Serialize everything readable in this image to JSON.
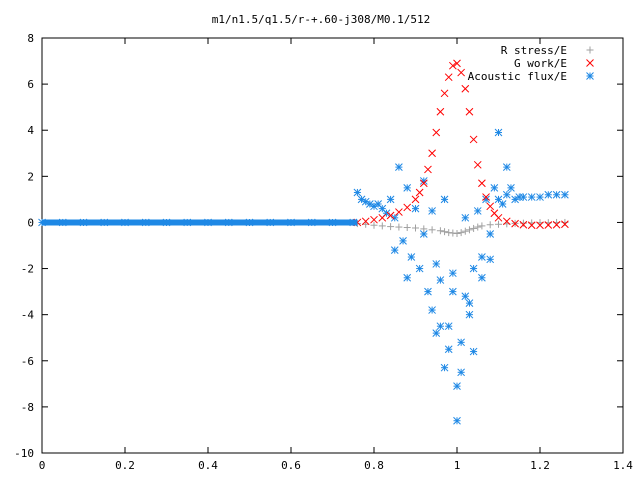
{
  "chart_data": {
    "type": "scatter",
    "title": "m1/n1.5/q1.5/r-+.60-j308/M0.1/512",
    "xlabel": "",
    "ylabel": "",
    "xlim": [
      0,
      1.4
    ],
    "ylim": [
      -10,
      8
    ],
    "x_ticks": [
      "0",
      "0.2",
      "0.4",
      "0.6",
      "0.8",
      "1",
      "1.2",
      "1.4"
    ],
    "y_ticks": [
      "-10",
      "-8",
      "-6",
      "-4",
      "-2",
      "0",
      "2",
      "4",
      "6",
      "8"
    ],
    "grid": false,
    "legend_position": "top-right",
    "series": [
      {
        "name": "R stress/E",
        "marker": "plus",
        "color": "#a0a0a0",
        "x": [
          0.76,
          0.78,
          0.8,
          0.82,
          0.84,
          0.86,
          0.88,
          0.9,
          0.92,
          0.94,
          0.96,
          0.97,
          0.98,
          0.99,
          1.0,
          1.01,
          1.02,
          1.03,
          1.04,
          1.05,
          1.06,
          1.08,
          1.1,
          1.12,
          1.14,
          1.16,
          1.18,
          1.2,
          1.22,
          1.24,
          1.26
        ],
        "y": [
          -0.05,
          -0.08,
          -0.12,
          -0.15,
          -0.18,
          -0.2,
          -0.22,
          -0.24,
          -0.28,
          -0.32,
          -0.36,
          -0.4,
          -0.44,
          -0.46,
          -0.48,
          -0.44,
          -0.38,
          -0.32,
          -0.26,
          -0.2,
          -0.15,
          -0.1,
          -0.08,
          -0.06,
          -0.04,
          -0.03,
          -0.02,
          -0.01,
          -0.01,
          0.0,
          0.0
        ]
      },
      {
        "name": "G work/E",
        "marker": "cross",
        "color": "#ff0000",
        "x": [
          0.76,
          0.78,
          0.8,
          0.82,
          0.84,
          0.86,
          0.88,
          0.9,
          0.91,
          0.92,
          0.93,
          0.94,
          0.95,
          0.96,
          0.97,
          0.98,
          0.99,
          1.0,
          1.01,
          1.02,
          1.03,
          1.04,
          1.05,
          1.06,
          1.07,
          1.08,
          1.09,
          1.1,
          1.12,
          1.14,
          1.16,
          1.18,
          1.2,
          1.22,
          1.24,
          1.26
        ],
        "y": [
          0.0,
          0.05,
          0.12,
          0.2,
          0.3,
          0.45,
          0.65,
          1.0,
          1.3,
          1.7,
          2.3,
          3.0,
          3.9,
          4.8,
          5.6,
          6.3,
          6.8,
          6.9,
          6.5,
          5.8,
          4.8,
          3.6,
          2.5,
          1.7,
          1.1,
          0.7,
          0.4,
          0.2,
          0.05,
          -0.05,
          -0.1,
          -0.12,
          -0.12,
          -0.11,
          -0.1,
          -0.08
        ]
      },
      {
        "name": "Acoustic flux/E",
        "marker": "star",
        "color": "#1e88e5",
        "x": [
          0.0,
          0.05,
          0.1,
          0.15,
          0.2,
          0.25,
          0.3,
          0.35,
          0.4,
          0.45,
          0.5,
          0.55,
          0.6,
          0.65,
          0.7,
          0.75,
          0.76,
          0.77,
          0.78,
          0.79,
          0.8,
          0.81,
          0.82,
          0.83,
          0.84,
          0.85,
          0.86,
          0.87,
          0.88,
          0.89,
          0.9,
          0.91,
          0.92,
          0.93,
          0.94,
          0.95,
          0.96,
          0.97,
          0.98,
          0.99,
          1.0,
          1.01,
          1.02,
          1.03,
          1.04,
          1.05,
          1.06,
          1.07,
          1.08,
          1.09,
          1.1,
          1.11,
          1.12,
          1.13,
          1.14,
          1.15,
          1.16,
          1.18,
          1.2,
          1.22,
          1.24,
          1.26,
          0.85,
          0.88,
          0.92,
          0.95,
          0.97,
          0.99,
          1.0,
          1.02,
          1.04,
          1.06,
          1.08,
          1.1,
          1.12,
          0.94,
          0.96,
          0.98,
          1.01,
          1.03
        ],
        "y": [
          0.0,
          0.0,
          0.0,
          0.0,
          0.0,
          0.0,
          0.0,
          0.0,
          0.0,
          0.0,
          0.0,
          0.0,
          0.0,
          0.0,
          0.0,
          0.0,
          1.3,
          1.0,
          0.9,
          0.8,
          0.7,
          0.8,
          0.6,
          0.4,
          1.0,
          0.2,
          2.4,
          -0.8,
          1.5,
          -1.5,
          0.6,
          -2.0,
          1.8,
          -3.0,
          0.5,
          -1.8,
          -4.5,
          1.0,
          -5.5,
          -3.0,
          -8.6,
          -6.5,
          0.2,
          -4.0,
          -2.0,
          0.5,
          -1.5,
          1.0,
          -0.5,
          1.5,
          1.0,
          0.8,
          1.2,
          1.5,
          1.0,
          1.1,
          1.1,
          1.1,
          1.1,
          1.2,
          1.2,
          1.2,
          -1.2,
          -2.4,
          -0.5,
          -4.8,
          -6.3,
          -2.2,
          -7.1,
          -3.2,
          -5.6,
          -2.4,
          -1.6,
          3.9,
          2.4,
          -3.8,
          -2.5,
          -4.5,
          -5.2,
          -3.5
        ]
      }
    ]
  }
}
